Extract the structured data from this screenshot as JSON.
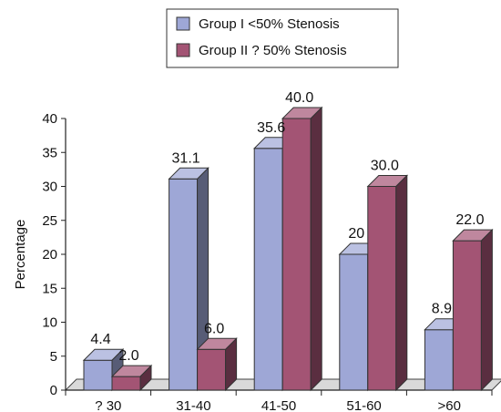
{
  "chart_data": {
    "type": "bar",
    "title": "",
    "xlabel": "",
    "ylabel": "Percentage",
    "ylim": [
      0,
      40
    ],
    "yticks": [
      0,
      5,
      10,
      15,
      20,
      25,
      30,
      35,
      40
    ],
    "categories": [
      "? 30",
      "31-40",
      "41-50",
      "51-60",
      ">60"
    ],
    "series": [
      {
        "name": "Group I <50% Stenosis",
        "values": [
          4.4,
          31.1,
          35.6,
          20,
          8.9
        ],
        "labels": [
          "4.4",
          "31.1",
          "35.6",
          "20",
          "8.9"
        ],
        "color": "#9ea7d6"
      },
      {
        "name": "Group II ? 50% Stenosis",
        "values": [
          2.0,
          6.0,
          40.0,
          30.0,
          22.0
        ],
        "labels": [
          "2.0",
          "6.0",
          "40.0",
          "30.0",
          "22.0"
        ],
        "color": "#a35474"
      }
    ],
    "legend_position": "top",
    "grid": false,
    "style": "3d-bar"
  }
}
